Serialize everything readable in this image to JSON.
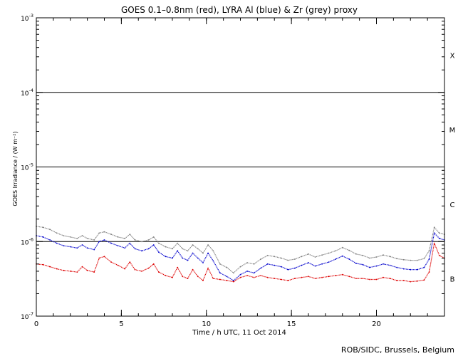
{
  "chart_data": {
    "type": "scatter",
    "title": "GOES 0.1–0.8nm (red), LYRA Al (blue) & Zr (grey) proxy",
    "xlabel": "Time / h UTC, 11 Oct 2014",
    "ylabel": "GOES Irradiance / (W m⁻²)",
    "xlim": [
      0,
      24
    ],
    "ylim": [
      1e-07,
      0.001
    ],
    "yscale": "log",
    "x_ticks": [
      0,
      5,
      10,
      15,
      20
    ],
    "y_ticks": [
      {
        "value": 1e-07,
        "base": "10",
        "exp": "-7"
      },
      {
        "value": 1e-06,
        "base": "10",
        "exp": "-6"
      },
      {
        "value": 1e-05,
        "base": "10",
        "exp": "-5"
      },
      {
        "value": 0.0001,
        "base": "10",
        "exp": "-4"
      },
      {
        "value": 0.001,
        "base": "10",
        "exp": "-3"
      }
    ],
    "class_thresholds": [
      1e-06,
      1e-05,
      0.0001
    ],
    "flare_classes": [
      {
        "label": "X",
        "y": 0.000316
      },
      {
        "label": "M",
        "y": 3.16e-05
      },
      {
        "label": "C",
        "y": 3.16e-06
      },
      {
        "label": "B",
        "y": 3.16e-07
      }
    ],
    "grid": false,
    "series": [
      {
        "color": "#808080",
        "x": [
          0.0,
          0.4,
          0.8,
          1.2,
          1.6,
          2.0,
          2.4,
          2.7,
          3.0,
          3.4,
          3.7,
          4.0,
          4.4,
          4.8,
          5.2,
          5.5,
          5.8,
          6.2,
          6.6,
          6.9,
          7.2,
          7.6,
          8.0,
          8.3,
          8.6,
          8.9,
          9.2,
          9.5,
          9.8,
          10.1,
          10.4,
          10.8,
          11.2,
          11.6,
          12.0,
          12.4,
          12.8,
          13.2,
          13.6,
          14.0,
          14.4,
          14.8,
          15.2,
          15.6,
          16.0,
          16.4,
          16.8,
          17.2,
          17.6,
          18.0,
          18.4,
          18.8,
          19.2,
          19.6,
          20.0,
          20.4,
          20.8,
          21.2,
          21.6,
          22.0,
          22.4,
          22.8,
          23.1,
          23.4,
          23.7,
          24.0
        ],
        "y": [
          1.6e-06,
          1.55e-06,
          1.45e-06,
          1.3e-06,
          1.2e-06,
          1.15e-06,
          1.1e-06,
          1.2e-06,
          1.1e-06,
          1.05e-06,
          1.3e-06,
          1.35e-06,
          1.25e-06,
          1.15e-06,
          1.1e-06,
          1.25e-06,
          1.05e-06,
          1e-06,
          1.05e-06,
          1.15e-06,
          9.5e-07,
          8.5e-07,
          8e-07,
          9.5e-07,
          8e-07,
          7.5e-07,
          9e-07,
          8e-07,
          7e-07,
          9e-07,
          7.5e-07,
          5e-07,
          4.5e-07,
          3.8e-07,
          4.6e-07,
          5.2e-07,
          5e-07,
          5.8e-07,
          6.5e-07,
          6.3e-07,
          6e-07,
          5.6e-07,
          5.8e-07,
          6.3e-07,
          6.8e-07,
          6.2e-07,
          6.6e-07,
          7e-07,
          7.5e-07,
          8.3e-07,
          7.6e-07,
          6.8e-07,
          6.5e-07,
          6e-07,
          6.2e-07,
          6.6e-07,
          6.3e-07,
          5.9e-07,
          5.7e-07,
          5.6e-07,
          5.6e-07,
          5.9e-07,
          7.5e-07,
          1.55e-06,
          1.3e-06,
          1.25e-06
        ]
      },
      {
        "color": "#0000cc",
        "x": [
          0.0,
          0.4,
          0.8,
          1.2,
          1.6,
          2.0,
          2.4,
          2.7,
          3.0,
          3.4,
          3.7,
          4.0,
          4.4,
          4.8,
          5.2,
          5.5,
          5.8,
          6.2,
          6.6,
          6.9,
          7.2,
          7.6,
          8.0,
          8.3,
          8.6,
          8.9,
          9.2,
          9.5,
          9.8,
          10.1,
          10.4,
          10.8,
          11.2,
          11.6,
          12.0,
          12.4,
          12.8,
          13.2,
          13.6,
          14.0,
          14.4,
          14.8,
          15.2,
          15.6,
          16.0,
          16.4,
          16.8,
          17.2,
          17.6,
          18.0,
          18.4,
          18.8,
          19.2,
          19.6,
          20.0,
          20.4,
          20.8,
          21.2,
          21.6,
          22.0,
          22.4,
          22.8,
          23.1,
          23.4,
          23.7,
          24.0
        ],
        "y": [
          1.2e-06,
          1.15e-06,
          1.05e-06,
          9.5e-07,
          8.8e-07,
          8.5e-07,
          8.2e-07,
          9e-07,
          8.2e-07,
          7.8e-07,
          1e-06,
          1.05e-06,
          9.5e-07,
          8.8e-07,
          8.2e-07,
          9.5e-07,
          8e-07,
          7.5e-07,
          8e-07,
          9e-07,
          7.2e-07,
          6.3e-07,
          6e-07,
          7.5e-07,
          6e-07,
          5.6e-07,
          7e-07,
          6e-07,
          5.2e-07,
          7e-07,
          5.5e-07,
          3.8e-07,
          3.4e-07,
          3e-07,
          3.6e-07,
          4e-07,
          3.8e-07,
          4.4e-07,
          5e-07,
          4.8e-07,
          4.6e-07,
          4.2e-07,
          4.4e-07,
          4.8e-07,
          5.2e-07,
          4.7e-07,
          5e-07,
          5.3e-07,
          5.8e-07,
          6.4e-07,
          5.8e-07,
          5.1e-07,
          4.9e-07,
          4.5e-07,
          4.7e-07,
          5e-07,
          4.8e-07,
          4.5e-07,
          4.3e-07,
          4.2e-07,
          4.2e-07,
          4.5e-07,
          5.8e-07,
          1.3e-06,
          1.1e-06,
          1.05e-06
        ]
      },
      {
        "color": "#dd0000",
        "x": [
          0.0,
          0.4,
          0.8,
          1.2,
          1.6,
          2.0,
          2.4,
          2.7,
          3.0,
          3.4,
          3.7,
          4.0,
          4.4,
          4.8,
          5.2,
          5.5,
          5.8,
          6.2,
          6.6,
          6.9,
          7.2,
          7.6,
          8.0,
          8.3,
          8.6,
          8.9,
          9.2,
          9.5,
          9.8,
          10.1,
          10.4,
          10.8,
          11.2,
          11.6,
          12.0,
          12.4,
          12.8,
          13.2,
          13.6,
          14.0,
          14.4,
          14.8,
          15.2,
          15.6,
          16.0,
          16.4,
          16.8,
          17.2,
          17.6,
          18.0,
          18.4,
          18.8,
          19.2,
          19.6,
          20.0,
          20.4,
          20.8,
          21.2,
          21.6,
          22.0,
          22.4,
          22.8,
          23.1,
          23.4,
          23.7,
          24.0
        ],
        "y": [
          5e-07,
          4.9e-07,
          4.6e-07,
          4.3e-07,
          4.1e-07,
          4e-07,
          3.9e-07,
          4.6e-07,
          4.1e-07,
          3.9e-07,
          6e-07,
          6.3e-07,
          5.3e-07,
          4.8e-07,
          4.3e-07,
          5.3e-07,
          4.2e-07,
          4e-07,
          4.4e-07,
          5e-07,
          3.9e-07,
          3.5e-07,
          3.3e-07,
          4.5e-07,
          3.4e-07,
          3.2e-07,
          4.2e-07,
          3.4e-07,
          3e-07,
          4.4e-07,
          3.2e-07,
          3.1e-07,
          3e-07,
          2.9e-07,
          3.3e-07,
          3.5e-07,
          3.3e-07,
          3.5e-07,
          3.3e-07,
          3.2e-07,
          3.1e-07,
          3e-07,
          3.2e-07,
          3.3e-07,
          3.4e-07,
          3.2e-07,
          3.3e-07,
          3.4e-07,
          3.5e-07,
          3.6e-07,
          3.4e-07,
          3.2e-07,
          3.2e-07,
          3.1e-07,
          3.1e-07,
          3.3e-07,
          3.2e-07,
          3e-07,
          3e-07,
          2.9e-07,
          2.95e-07,
          3.05e-07,
          3.9e-07,
          9.5e-07,
          6.5e-07,
          6e-07
        ]
      }
    ]
  },
  "footer": {
    "credit": "ROB/SIDC, Brussels, Belgium"
  }
}
